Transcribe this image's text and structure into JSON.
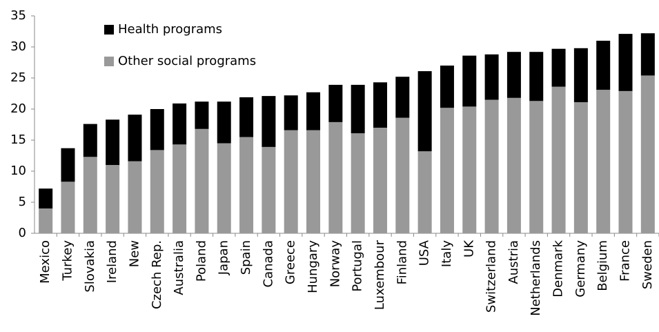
{
  "chart_data": {
    "type": "stacked-bar",
    "categories": [
      "Mexico",
      "Turkey",
      "Slovakia",
      "Ireland",
      "New",
      "Czech Rep.",
      "Australia",
      "Poland",
      "Japan",
      "Spain",
      "Canada",
      "Greece",
      "Hungary",
      "Norway",
      "Portugal",
      "Luxembour",
      "Finland",
      "USA",
      "Italy",
      "UK",
      "Switzerland",
      "Austria",
      "Netherlands",
      "Denmark",
      "Germany",
      "Belgium",
      "France",
      "Sweden"
    ],
    "series": [
      {
        "name": "Other social programs",
        "color": "#999999",
        "values": [
          4.0,
          8.3,
          12.3,
          11.0,
          11.6,
          13.4,
          14.3,
          16.8,
          14.5,
          15.5,
          13.9,
          16.6,
          16.6,
          17.9,
          16.1,
          17.0,
          18.6,
          13.2,
          20.2,
          20.4,
          21.5,
          21.8,
          21.3,
          23.6,
          21.1,
          23.1,
          22.9,
          25.4
        ]
      },
      {
        "name": "Health programs",
        "color": "#000000",
        "values": [
          3.2,
          5.4,
          5.3,
          7.3,
          7.5,
          6.6,
          6.6,
          4.4,
          6.7,
          6.4,
          8.2,
          5.6,
          6.1,
          6.0,
          7.8,
          7.3,
          6.6,
          12.9,
          6.8,
          8.2,
          7.3,
          7.4,
          7.9,
          6.1,
          8.7,
          7.9,
          9.2,
          6.8
        ]
      }
    ],
    "ylim": [
      0,
      35
    ],
    "yticks": [
      0,
      5,
      10,
      15,
      20,
      25,
      30,
      35
    ],
    "grid": false
  }
}
